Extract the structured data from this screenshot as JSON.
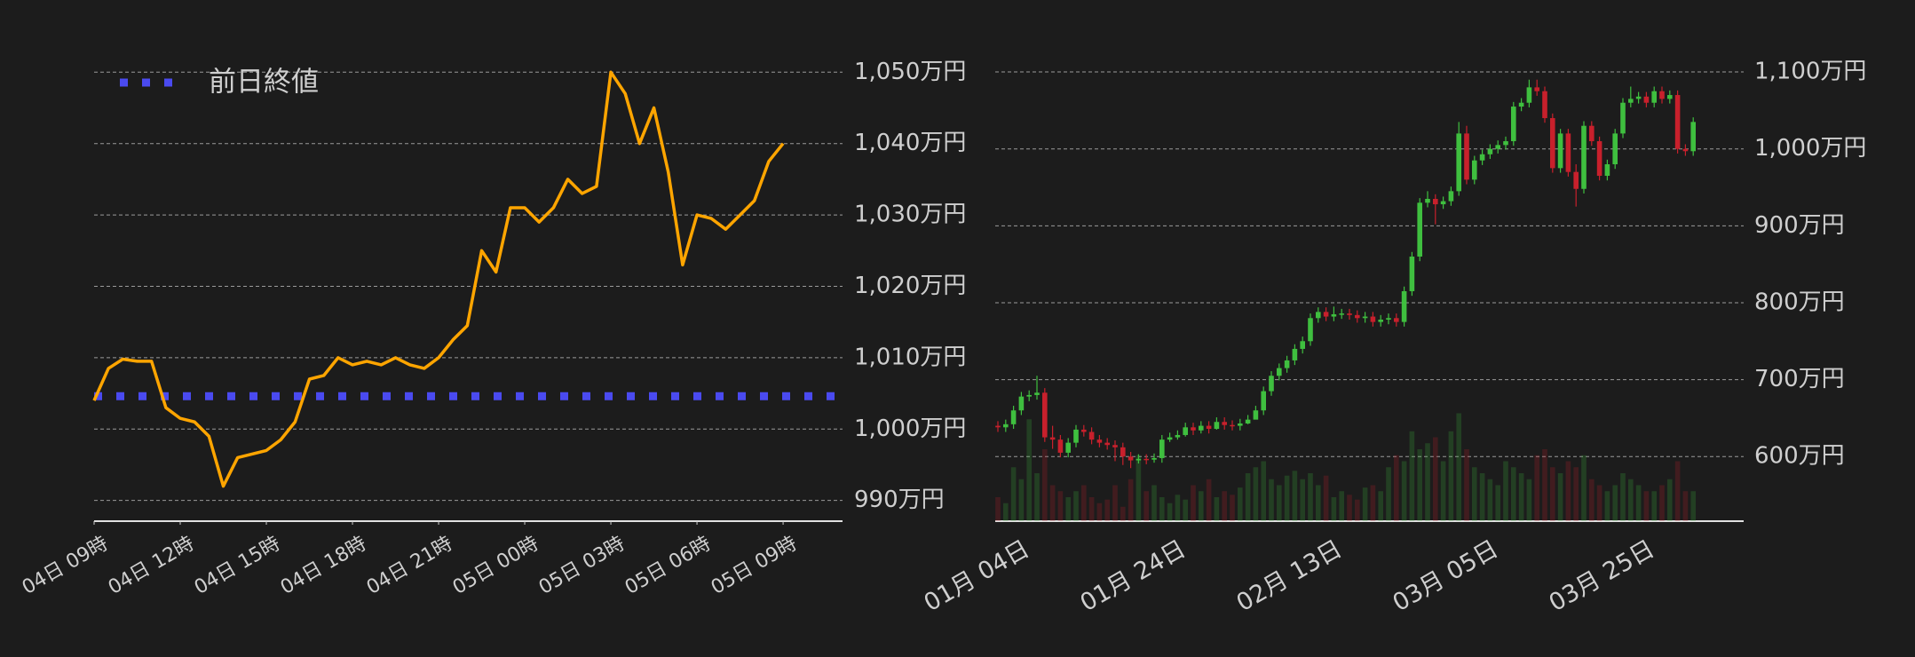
{
  "chart_data": [
    {
      "type": "line",
      "x": [
        0,
        0.5,
        1,
        1.5,
        2,
        2.5,
        3,
        3.5,
        4,
        4.5,
        5,
        5.5,
        6,
        6.5,
        7,
        7.5,
        8,
        8.5,
        9,
        9.5,
        10,
        10.5,
        11,
        11.5,
        12,
        12.5,
        13,
        13.5,
        14,
        14.5,
        15,
        15.5,
        16,
        16.5,
        17,
        17.5,
        18,
        18.5,
        19,
        19.5,
        20,
        20.5,
        21,
        21.5,
        22,
        22.5,
        23,
        23.5,
        24
      ],
      "series": [
        {
          "color": "#ffa500",
          "values": [
            1004,
            1008.5,
            1009.8,
            1009.5,
            1009.5,
            1003,
            1001.5,
            1001,
            999,
            992,
            996,
            996.5,
            997,
            998.5,
            1001,
            1007,
            1007.5,
            1010,
            1009,
            1009.5,
            1009,
            1010,
            1009,
            1008.5,
            1010,
            1012.5,
            1014.5,
            1025,
            1022,
            1031,
            1031,
            1029,
            1031,
            1035,
            1033,
            1034,
            1050,
            1047,
            1040,
            1045,
            1036,
            1023,
            1030,
            1029.5,
            1028,
            1030,
            1032,
            1037.5,
            1040
          ]
        }
      ],
      "reference": {
        "name": "前日終値",
        "value": 1004.6,
        "color": "#4a4af0"
      },
      "xlim": [
        0,
        26.07
      ],
      "xticks": [
        {
          "value": 0,
          "label": "04日 09時"
        },
        {
          "value": 3,
          "label": "04日 12時"
        },
        {
          "value": 6,
          "label": "04日 15時"
        },
        {
          "value": 9,
          "label": "04日 18時"
        },
        {
          "value": 12,
          "label": "04日 21時"
        },
        {
          "value": 15,
          "label": "05日 00時"
        },
        {
          "value": 18,
          "label": "05日 03時"
        },
        {
          "value": 21,
          "label": "05日 06時"
        },
        {
          "value": 24,
          "label": "05日 09時"
        }
      ],
      "ylim": [
        987.1,
        1052.4
      ],
      "yticks": [
        {
          "value": 990,
          "label": "990万円"
        },
        {
          "value": 1000,
          "label": "1,000万円"
        },
        {
          "value": 1010,
          "label": "1,010万円"
        },
        {
          "value": 1020,
          "label": "1,020万円"
        },
        {
          "value": 1030,
          "label": "1,030万円"
        },
        {
          "value": 1040,
          "label": "1,040万円"
        },
        {
          "value": 1050,
          "label": "1,050万円"
        }
      ],
      "grid": true
    },
    {
      "type": "candlestick",
      "categories": [
        null,
        null,
        "01月 04日",
        null,
        null,
        null,
        null,
        null,
        null,
        null,
        null,
        null,
        null,
        null,
        null,
        null,
        null,
        null,
        null,
        null,
        null,
        null,
        "01月 24日",
        null,
        null,
        null,
        null,
        null,
        null,
        null,
        null,
        null,
        null,
        null,
        null,
        null,
        null,
        null,
        null,
        null,
        null,
        null,
        "02月 13日",
        null,
        null,
        null,
        null,
        null,
        null,
        null,
        null,
        null,
        null,
        null,
        null,
        null,
        null,
        null,
        null,
        null,
        null,
        null,
        "03月 05日",
        null,
        null,
        null,
        null,
        null,
        null,
        null,
        null,
        null,
        null,
        null,
        null,
        null,
        null,
        null,
        null,
        null,
        null,
        null,
        "03月 25日",
        null,
        null,
        null,
        null,
        null,
        null,
        null
      ],
      "open": [
        640,
        638,
        642,
        660,
        678,
        680,
        683,
        625,
        622,
        605,
        618,
        635,
        632,
        622,
        618,
        615,
        612,
        600,
        595,
        597,
        596,
        598,
        622,
        625,
        628,
        638,
        634,
        640,
        636,
        645,
        641,
        640,
        643,
        648,
        660,
        685,
        705,
        715,
        725,
        740,
        750,
        780,
        788,
        782,
        785,
        786,
        784,
        780,
        782,
        775,
        778,
        780,
        775,
        815,
        860,
        930,
        935,
        928,
        932,
        945,
        1020,
        960,
        985,
        993,
        1000,
        1005,
        1010,
        1055,
        1060,
        1080,
        1075,
        1040,
        975,
        1020,
        970,
        948,
        1030,
        1010,
        965,
        980,
        1020,
        1060,
        1065,
        1068,
        1060,
        1075,
        1065,
        1070,
        1000,
        997
      ],
      "high": [
        646,
        648,
        666,
        684,
        686,
        705,
        689,
        640,
        628,
        624,
        641,
        641,
        638,
        628,
        624,
        621,
        618,
        606,
        603,
        603,
        604,
        628,
        631,
        634,
        644,
        644,
        646,
        646,
        651,
        651,
        647,
        649,
        654,
        666,
        691,
        711,
        721,
        731,
        746,
        756,
        786,
        794,
        794,
        795,
        792,
        792,
        790,
        788,
        788,
        784,
        786,
        786,
        821,
        866,
        936,
        945,
        941,
        938,
        951,
        1035,
        1030,
        991,
        999,
        1006,
        1011,
        1016,
        1061,
        1066,
        1090,
        1090,
        1081,
        1046,
        1026,
        1026,
        980,
        1036,
        1036,
        1016,
        986,
        1026,
        1066,
        1081,
        1074,
        1074,
        1081,
        1081,
        1076,
        1076,
        1006,
        1041
      ],
      "low": [
        632,
        632,
        636,
        654,
        672,
        674,
        619,
        610,
        599,
        599,
        612,
        626,
        616,
        612,
        609,
        594,
        589,
        585,
        591,
        590,
        592,
        592,
        619,
        622,
        626,
        628,
        630,
        630,
        635,
        635,
        634,
        634,
        642,
        654,
        654,
        679,
        699,
        709,
        719,
        734,
        744,
        774,
        776,
        776,
        779,
        778,
        774,
        774,
        769,
        769,
        772,
        769,
        769,
        809,
        854,
        924,
        902,
        922,
        926,
        939,
        954,
        954,
        979,
        987,
        994,
        999,
        1004,
        1049,
        1054,
        1069,
        1034,
        969,
        969,
        964,
        925,
        942,
        1004,
        959,
        959,
        974,
        1014,
        1054,
        1059,
        1054,
        1054,
        1059,
        1059,
        994,
        991,
        991
      ],
      "close": [
        638,
        642,
        660,
        678,
        680,
        683,
        625,
        622,
        605,
        618,
        635,
        632,
        622,
        618,
        615,
        612,
        600,
        595,
        597,
        596,
        598,
        622,
        625,
        628,
        638,
        634,
        640,
        636,
        645,
        641,
        640,
        643,
        648,
        660,
        685,
        705,
        715,
        725,
        740,
        750,
        780,
        788,
        782,
        785,
        786,
        784,
        780,
        782,
        775,
        778,
        780,
        775,
        815,
        860,
        930,
        935,
        928,
        932,
        945,
        1020,
        960,
        985,
        993,
        1000,
        1005,
        1010,
        1055,
        1060,
        1080,
        1075,
        1040,
        975,
        1020,
        970,
        948,
        1030,
        1010,
        965,
        980,
        1020,
        1060,
        1065,
        1068,
        1060,
        1075,
        1065,
        1070,
        1000,
        997,
        1035
      ],
      "volume": [
        20,
        15,
        45,
        35,
        85,
        40,
        60,
        30,
        25,
        20,
        25,
        30,
        20,
        15,
        18,
        30,
        12,
        35,
        55,
        25,
        30,
        20,
        15,
        22,
        18,
        30,
        25,
        35,
        20,
        25,
        22,
        28,
        40,
        45,
        50,
        35,
        30,
        38,
        42,
        35,
        40,
        30,
        38,
        20,
        25,
        22,
        18,
        28,
        30,
        25,
        45,
        55,
        50,
        75,
        60,
        65,
        70,
        50,
        75,
        90,
        60,
        45,
        40,
        35,
        30,
        50,
        45,
        40,
        35,
        55,
        60,
        45,
        40,
        50,
        45,
        55,
        35,
        30,
        25,
        30,
        40,
        35,
        30,
        25,
        25,
        30,
        35,
        50,
        25,
        25
      ],
      "volume_lim": [
        0,
        100
      ],
      "up_color": "#3fbf3f",
      "down_color": "#c8202c",
      "ylim": [
        516,
        1122
      ],
      "yticks": [
        {
          "value": 600,
          "label": "600万円"
        },
        {
          "value": 700,
          "label": "700万円"
        },
        {
          "value": 800,
          "label": "800万円"
        },
        {
          "value": 900,
          "label": "900万円"
        },
        {
          "value": 1000,
          "label": "1,000万円"
        },
        {
          "value": 1100,
          "label": "1,100万円"
        }
      ],
      "grid": true
    }
  ]
}
